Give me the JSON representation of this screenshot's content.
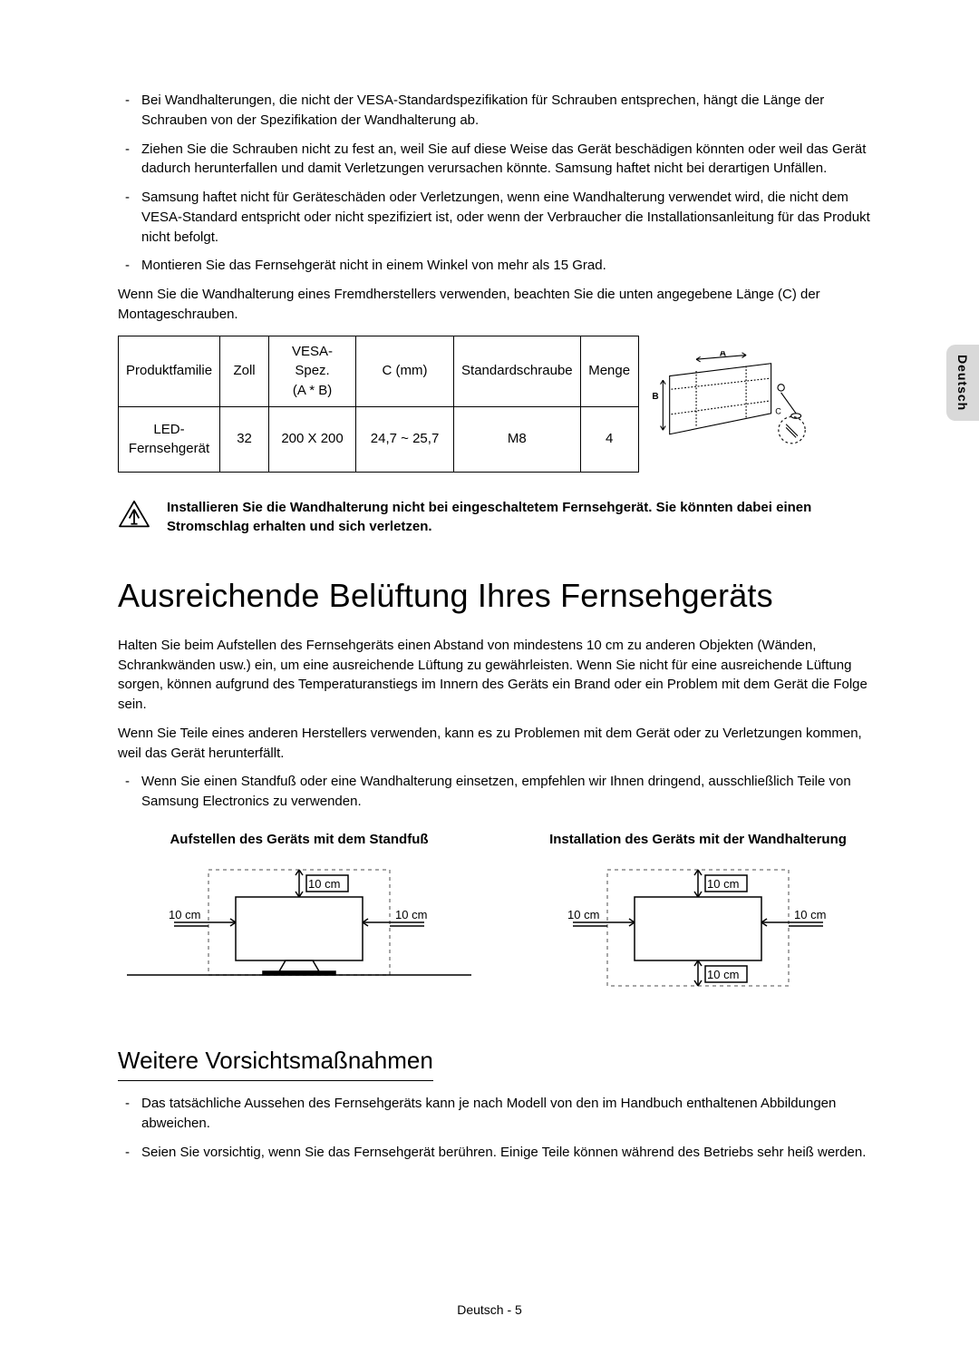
{
  "sideTab": "Deutsch",
  "intro": {
    "bullets": [
      "Bei Wandhalterungen, die nicht der VESA-Standardspezifikation für Schrauben entsprechen, hängt die Länge der Schrauben von der Spezifikation der Wandhalterung ab.",
      "Ziehen Sie die Schrauben nicht zu fest an, weil Sie auf diese Weise das Gerät beschädigen könnten oder weil das Gerät dadurch herunterfallen und damit Verletzungen verursachen könnte. Samsung haftet nicht bei derartigen Unfällen.",
      "Samsung haftet nicht für Geräteschäden oder Verletzungen, wenn eine Wandhalterung verwendet wird, die nicht dem VESA-Standard entspricht oder nicht spezifiziert ist, oder wenn der Verbraucher die Installationsanleitung für das Produkt nicht befolgt.",
      "Montieren Sie das Fernsehgerät nicht in einem Winkel von mehr als 15 Grad."
    ],
    "para": "Wenn Sie die Wandhalterung eines Fremdherstellers verwenden, beachten Sie die unten angegebene Länge (C) der Montageschrauben."
  },
  "table": {
    "headers": {
      "family": "Produktfamilie",
      "inches": "Zoll",
      "vesa": "VESA-Spez.\n(A * B)",
      "c": "C (mm)",
      "screw": "Standardschraube",
      "qty": "Menge"
    },
    "row": {
      "family": "LED-\nFernsehgerät",
      "inches": "32",
      "vesa": "200 X 200",
      "c": "24,7 ~ 25,7",
      "screw": "M8",
      "qty": "4"
    },
    "colWidths": {
      "family": 110,
      "inches": 54,
      "vesa": 96,
      "c": 108,
      "screw": 130,
      "qty": 64,
      "diagram": 200
    },
    "diagramLabels": {
      "a": "A",
      "b": "B",
      "c": "C"
    }
  },
  "warning": "Installieren Sie die Wandhalterung nicht bei eingeschaltetem Fernsehgerät. Sie könnten dabei einen Stromschlag erhalten und sich verletzen.",
  "ventilation": {
    "heading": "Ausreichende Belüftung Ihres Fernsehgeräts",
    "p1": "Halten Sie beim Aufstellen des Fernsehgeräts einen Abstand von mindestens 10 cm zu anderen Objekten (Wänden, Schrankwänden usw.) ein, um eine ausreichende Lüftung zu gewährleisten. Wenn Sie nicht für eine ausreichende Lüftung sorgen, können aufgrund des Temperaturanstiegs im Innern des Geräts ein Brand oder ein Problem mit dem Gerät die Folge sein.",
    "p2": "Wenn Sie Teile eines anderen Herstellers verwenden, kann es zu Problemen mit dem Gerät oder zu Verletzungen kommen, weil das Gerät herunterfällt.",
    "bullet": "Wenn Sie einen Standfuß oder eine Wandhalterung einsetzen, empfehlen wir Ihnen dringend, ausschließlich Teile von Samsung Electronics zu verwenden.",
    "diagrams": {
      "stand": {
        "caption": "Aufstellen des Geräts mit dem Standfuß",
        "label": "10 cm"
      },
      "wall": {
        "caption": "Installation des Geräts mit der Wandhalterung",
        "label": "10 cm"
      }
    }
  },
  "precautions": {
    "heading": "Weitere Vorsichtsmaßnahmen",
    "bullets": [
      "Das tatsächliche Aussehen des Fernsehgeräts kann je nach Modell von den im Handbuch enthaltenen Abbildungen abweichen.",
      "Seien Sie vorsichtig, wenn Sie das Fernsehgerät berühren. Einige Teile können während des Betriebs sehr heiß werden."
    ]
  },
  "footer": "Deutsch - 5",
  "colors": {
    "text": "#000000",
    "background": "#ffffff",
    "tab": "#d9d9d9",
    "dashed": "#888888"
  }
}
